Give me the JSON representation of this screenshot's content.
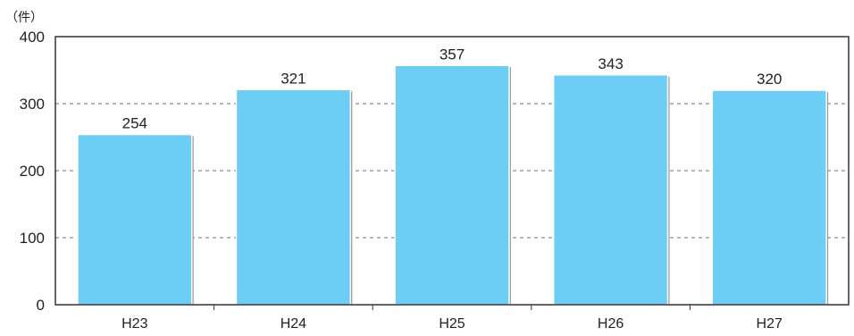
{
  "chart_data": {
    "type": "bar",
    "unit_label": "（件）",
    "categories": [
      "H23",
      "H24",
      "H25",
      "H26",
      "H27"
    ],
    "values": [
      254,
      321,
      357,
      343,
      320
    ],
    "data_labels": [
      "254",
      "321",
      "357",
      "343",
      "320"
    ],
    "yticks": [
      0,
      100,
      200,
      300,
      400
    ],
    "ytick_labels": [
      "0",
      "100",
      "200",
      "300",
      "400"
    ],
    "ylim": [
      0,
      400
    ],
    "grid": "horizontal-dashed",
    "legend": "none",
    "title": "",
    "xlabel": "",
    "ylabel": "",
    "colors": {
      "bar_fill": "#6dcdf4",
      "bar_edge": "#ffffff",
      "bar_shadow": "#9a9a9a",
      "grid": "#8c8c8c",
      "axis": "#333333"
    }
  }
}
